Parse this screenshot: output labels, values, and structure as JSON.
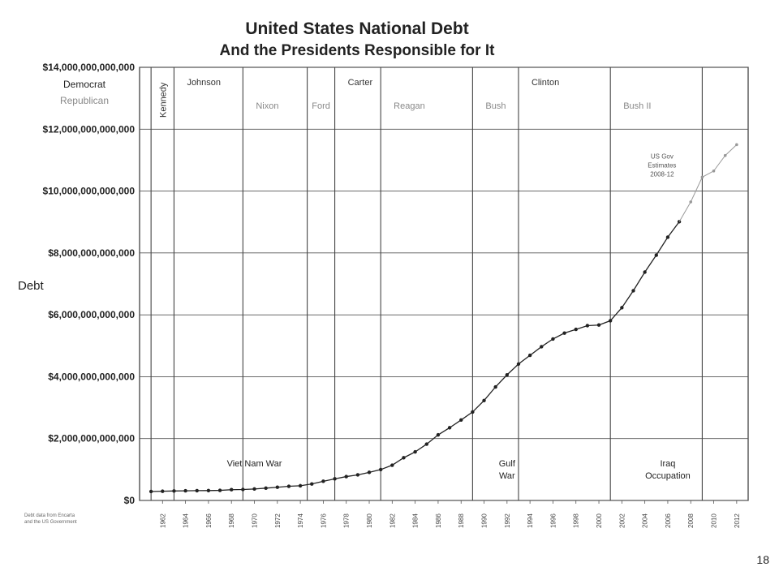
{
  "page_number": "18",
  "chart_data": {
    "type": "line",
    "title": "United States National Debt",
    "subtitle": "And the Presidents Responsible for It",
    "ylabel": "Debt",
    "xlim": [
      1960,
      2013
    ],
    "ylim": [
      0,
      14000000000000
    ],
    "grid": true,
    "y_ticks": [
      {
        "value": 0,
        "label": "$0"
      },
      {
        "value": 2000000000000,
        "label": "$2,000,000,000,000"
      },
      {
        "value": 4000000000000,
        "label": "$4,000,000,000,000"
      },
      {
        "value": 6000000000000,
        "label": "$6,000,000,000,000"
      },
      {
        "value": 8000000000000,
        "label": "$8,000,000,000,000"
      },
      {
        "value": 10000000000000,
        "label": "$10,000,000,000,000"
      },
      {
        "value": 12000000000000,
        "label": "$12,000,000,000,000"
      },
      {
        "value": 14000000000000,
        "label": "$14,000,000,000,000"
      }
    ],
    "x_ticks": [
      {
        "value": 1962,
        "label": "1962"
      },
      {
        "value": 1964,
        "label": "1964"
      },
      {
        "value": 1966,
        "label": "1966"
      },
      {
        "value": 1968,
        "label": "1968"
      },
      {
        "value": 1970,
        "label": "1970"
      },
      {
        "value": 1972,
        "label": "1972"
      },
      {
        "value": 1974,
        "label": "1974"
      },
      {
        "value": 1976,
        "label": "1976"
      },
      {
        "value": 1978,
        "label": "1978"
      },
      {
        "value": 1980,
        "label": "1980"
      },
      {
        "value": 1982,
        "label": "1982"
      },
      {
        "value": 1984,
        "label": "1984"
      },
      {
        "value": 1986,
        "label": "1986"
      },
      {
        "value": 1988,
        "label": "1988"
      },
      {
        "value": 1990,
        "label": "1990"
      },
      {
        "value": 1992,
        "label": "1992"
      },
      {
        "value": 1994,
        "label": "1994"
      },
      {
        "value": 1996,
        "label": "1996"
      },
      {
        "value": 1998,
        "label": "1998"
      },
      {
        "value": 2000,
        "label": "2000"
      },
      {
        "value": 2002,
        "label": "2002"
      },
      {
        "value": 2004,
        "label": "2004"
      },
      {
        "value": 2006,
        "label": "2006"
      },
      {
        "value": 2008,
        "label": "2008"
      },
      {
        "value": 2010,
        "label": "2010"
      },
      {
        "value": 2012,
        "label": "2012"
      }
    ],
    "terms": [
      {
        "name": "Kennedy",
        "party": "Democrat",
        "start": 1961,
        "vertical": true
      },
      {
        "name": "Johnson",
        "party": "Democrat",
        "start": 1963
      },
      {
        "name": "Nixon",
        "party": "Republican",
        "start": 1969
      },
      {
        "name": "Ford",
        "party": "Republican",
        "start": 1974.6
      },
      {
        "name": "Carter",
        "party": "Democrat",
        "start": 1977
      },
      {
        "name": "Reagan",
        "party": "Republican",
        "start": 1981
      },
      {
        "name": "Bush",
        "party": "Republican",
        "start": 1989
      },
      {
        "name": "Clinton",
        "party": "Democrat",
        "start": 1993
      },
      {
        "name": "Bush II",
        "party": "Republican",
        "start": 2001
      }
    ],
    "term_boundaries": [
      1961,
      1963,
      1969,
      1974.6,
      1977,
      1981,
      1989,
      1993,
      2001,
      2009
    ],
    "legend": [
      {
        "label": "Democrat",
        "color": "#222222"
      },
      {
        "label": "Republican",
        "color": "#888888"
      }
    ],
    "annotations": [
      {
        "text": "Viet Nam War",
        "lines": [
          "Viet Nam War"
        ],
        "x": 1970,
        "y": 1100000000000
      },
      {
        "text": "Gulf War",
        "lines": [
          "Gulf",
          "War"
        ],
        "x": 1992,
        "y": 1100000000000
      },
      {
        "text": "Iraq Occupation",
        "lines": [
          "Iraq",
          "Occupation"
        ],
        "x": 2006,
        "y": 1100000000000
      },
      {
        "text": "US Gov Estimates 2008-12",
        "lines": [
          "US Gov",
          "Estimates",
          "2008-12"
        ],
        "x": 2005.5,
        "y": 11050000000000
      }
    ],
    "source_note": [
      "Debt data from Encarta",
      "and the US Government"
    ],
    "series": [
      {
        "name": "",
        "color": "#222222",
        "x": [
          1961,
          1962,
          1963,
          1964,
          1965,
          1966,
          1967,
          1968,
          1969,
          1970,
          1971,
          1972,
          1973,
          1974,
          1975,
          1976,
          1977,
          1978,
          1979,
          1980,
          1981,
          1982,
          1983,
          1984,
          1985,
          1986,
          1987,
          1988,
          1989,
          1990,
          1991,
          1992,
          1993,
          1994,
          1995,
          1996,
          1997,
          1998,
          1999,
          2000,
          2001,
          2002,
          2003,
          2004,
          2005,
          2006,
          2007
        ],
        "values": [
          289000000000,
          298000000000,
          306000000000,
          312000000000,
          317000000000,
          320000000000,
          326000000000,
          348000000000,
          354000000000,
          371000000000,
          398000000000,
          427000000000,
          458000000000,
          475000000000,
          533000000000,
          620000000000,
          699000000000,
          772000000000,
          827000000000,
          908000000000,
          998000000000,
          1140000000000,
          1380000000000,
          1570000000000,
          1820000000000,
          2120000000000,
          2350000000000,
          2600000000000,
          2860000000000,
          3230000000000,
          3670000000000,
          4060000000000,
          4410000000000,
          4690000000000,
          4970000000000,
          5220000000000,
          5410000000000,
          5530000000000,
          5650000000000,
          5670000000000,
          5810000000000,
          6230000000000,
          6780000000000,
          7380000000000,
          7930000000000,
          8510000000000,
          9010000000000
        ]
      },
      {
        "name": "US Gov Estimates 2008-12",
        "color": "#999999",
        "x": [
          2007,
          2008,
          2009,
          2010,
          2011,
          2012
        ],
        "values": [
          9010000000000,
          9650000000000,
          10450000000000,
          10650000000000,
          11150000000000,
          11500000000000
        ]
      }
    ]
  }
}
